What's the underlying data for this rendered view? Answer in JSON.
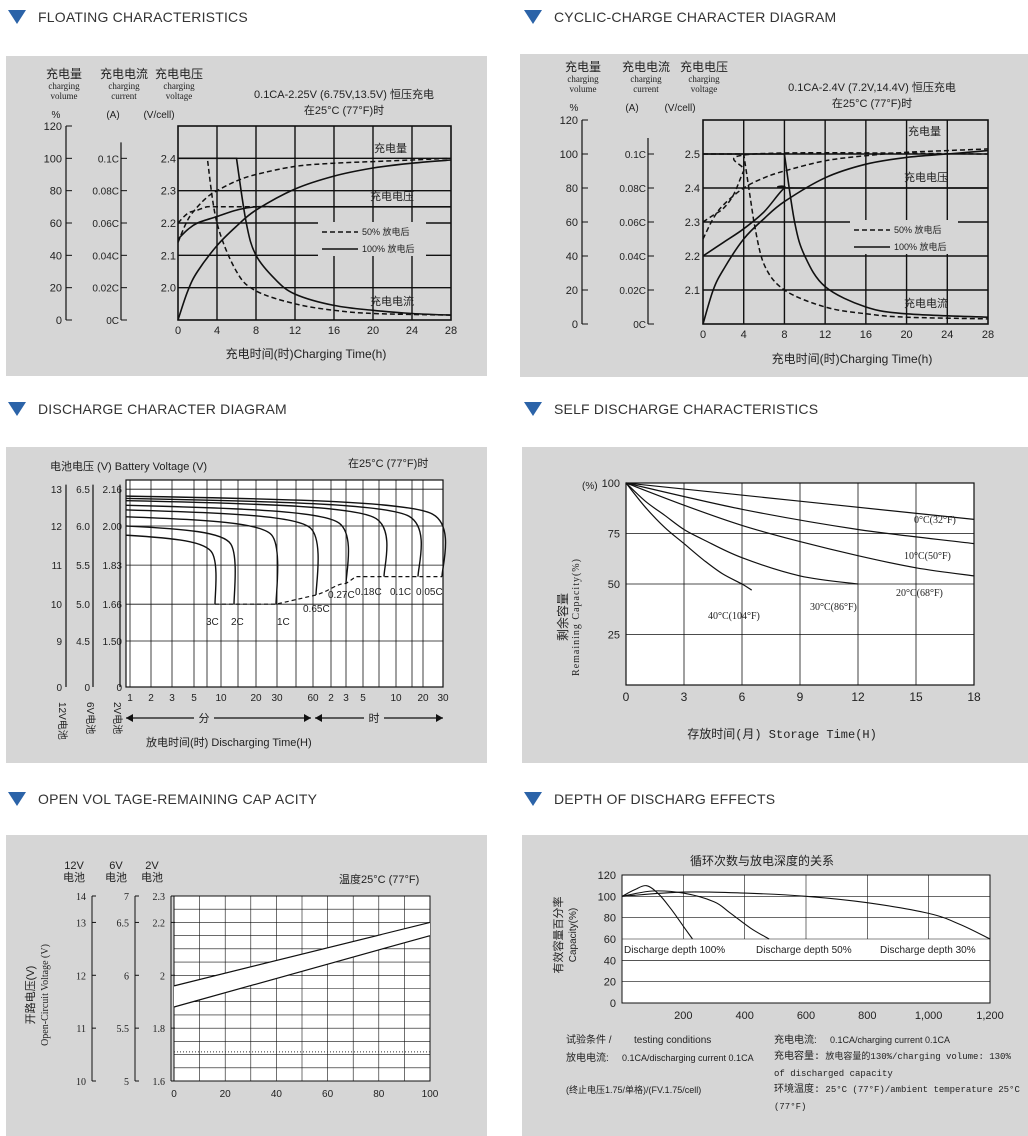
{
  "headers": {
    "float": "FLOATING CHARACTERISTICS",
    "cyclic": "CYCLIC-CHARGE CHARACTER DIAGRAM",
    "discharge": "DISCHARGE CHARACTER DIAGRAM",
    "self": "SELF DISCHARGE CHARACTERISTICS",
    "ocv": "OPEN VOL TAGE-REMAINING CAP ACITY",
    "dod": "DEPTH OF DISCHARG EFFECTS"
  },
  "float": {
    "col1": {
      "zh": "充电量",
      "en1": "charging",
      "en2": "volume",
      "unit": "%"
    },
    "col2": {
      "zh": "充电电流",
      "en1": "charging",
      "en2": "current",
      "unit": "(A)"
    },
    "col3": {
      "zh": "充电电压",
      "en1": "charging",
      "en2": "voltage",
      "unit": "(V/cell)"
    },
    "cond1": "0.1CA-2.25V (6.75V,13.5V) 恒压充电",
    "cond2": "在25°C (77°F)时",
    "lbl_vol": "充电量",
    "lbl_volt": "充电电压",
    "lbl_cur": "充电电流",
    "leg50": "50% 放电后",
    "leg100": "100% 放电后",
    "xlabel": "充电时间(时)Charging Time(h)"
  },
  "cyclic": {
    "col1": {
      "zh": "充电量",
      "en1": "charging",
      "en2": "volume",
      "unit": "%"
    },
    "col2": {
      "zh": "充电电流",
      "en1": "charging",
      "en2": "current",
      "unit": "(A)"
    },
    "col3": {
      "zh": "充电电压",
      "en1": "charging",
      "en2": "voltage",
      "unit": "(V/cell)"
    },
    "cond1": "0.1CA-2.4V (7.2V,14.4V) 恒压充电",
    "cond2": "在25°C (77°F)时",
    "lbl_vol": "充电量",
    "lbl_volt": "充电电压",
    "lbl_cur": "充电电流",
    "leg50": "50% 放电后",
    "leg100": "100% 放电后",
    "xlabel": "充电时间(时)Charging Time(h)"
  },
  "discharge": {
    "title": "电池电压 (V) Battery Voltage (V)",
    "temp": "在25°C (77°F)时",
    "col12": "12V电池",
    "col6": "6V电池",
    "col2": "2V电池",
    "min_lbl": "分",
    "hr_lbl": "时",
    "xlabel": "放电时间(时) Discharging Time(H)"
  },
  "self": {
    "ylabel_zh": "剩余容量",
    "ylabel_en": "Remaining Capacity(%)",
    "unit": "(%)",
    "xlabel": "存放时间(月) Storage Time(H)"
  },
  "ocv": {
    "h12": "12V",
    "h6": "6V",
    "h2": "2V",
    "hcell": "电池",
    "temp": "温度25°C (77°F)",
    "ylabel_zh": "开路电压(V)",
    "ylabel_en": "Open-Circuit Voltage (V)"
  },
  "dod": {
    "title": "循环次数与放电深度的关系",
    "ylabel_zh": "有效容量百分率",
    "ylabel_en": "Capacity(%)",
    "notes": [
      {
        "k": "试验条件 /",
        "v": "testing conditions"
      },
      {
        "k": "放电电流:",
        "v": "0.1CA/discharging current 0.1CA"
      },
      {
        "k": "",
        "v": "(终止电压1.75/单格)/(FV.1.75/cell)"
      },
      {
        "k": "充电电流:",
        "v": "0.1CA/charging current 0.1CA"
      },
      {
        "k": "充电容量:",
        "v": "放电容量的130%/charging volume: 130% of discharged capacity"
      },
      {
        "k": "环境温度:",
        "v": "25°C (77°F)/ambient temperature 25°C (77°F)"
      }
    ]
  },
  "chart_data": [
    {
      "type": "line",
      "id": "floating",
      "title": "FLOATING CHARACTERISTICS",
      "xlabel": "充电时间(时)Charging Time(h)",
      "xlim": [
        0,
        28
      ],
      "xticks": [
        0,
        4,
        8,
        12,
        16,
        20,
        24,
        28
      ],
      "y_axes": [
        {
          "name": "charging volume",
          "unit": "%",
          "ticks": [
            0,
            20,
            40,
            60,
            80,
            100,
            120
          ]
        },
        {
          "name": "charging current",
          "unit": "(A)",
          "ticks": [
            "0C",
            "0.02C",
            "0.04C",
            "0.06C",
            "0.08C",
            "0.1C"
          ]
        },
        {
          "name": "charging voltage",
          "unit": "(V/cell)",
          "ticks": [
            2.0,
            2.1,
            2.2,
            2.3,
            2.4
          ]
        }
      ],
      "series": [
        {
          "name": "充电量 50% 放电后",
          "x": [
            0,
            1,
            2,
            3,
            4,
            6,
            8,
            12,
            16,
            20,
            24,
            28
          ],
          "y": [
            48,
            62,
            70,
            76,
            80,
            86,
            90,
            95,
            97,
            98,
            99,
            100
          ]
        },
        {
          "name": "充电量 100% 放电后",
          "x": [
            0,
            1,
            2,
            4,
            6,
            8,
            12,
            16,
            20,
            24,
            28
          ],
          "y": [
            0,
            18,
            30,
            46,
            58,
            68,
            81,
            89,
            94,
            97,
            99
          ]
        },
        {
          "name": "充电电压 50% 放电后",
          "x": [
            0,
            1,
            2,
            3,
            4,
            8,
            28
          ],
          "y": [
            2.2,
            2.23,
            2.24,
            2.25,
            2.25,
            2.25,
            2.25
          ]
        },
        {
          "name": "充电电压 100% 放电后",
          "x": [
            0,
            1,
            2,
            4,
            6,
            8,
            12,
            28
          ],
          "y": [
            2.15,
            2.18,
            2.2,
            2.22,
            2.24,
            2.25,
            2.25,
            2.25
          ]
        },
        {
          "name": "充电电流 50% 放电后",
          "x": [
            0,
            2,
            3,
            4,
            6,
            8,
            12,
            16,
            20,
            28
          ],
          "y": [
            0.1,
            0.1,
            0.1,
            0.06,
            0.03,
            0.018,
            0.01,
            0.006,
            0.004,
            0.003
          ]
        },
        {
          "name": "充电电流 100% 放电后",
          "x": [
            0,
            6,
            7,
            8,
            10,
            12,
            16,
            20,
            24,
            28
          ],
          "y": [
            0.1,
            0.1,
            0.06,
            0.04,
            0.025,
            0.016,
            0.009,
            0.006,
            0.004,
            0.003
          ]
        }
      ]
    },
    {
      "type": "line",
      "id": "cyclic",
      "title": "CYCLIC-CHARGE CHARACTER DIAGRAM",
      "xlabel": "充电时间(时)Charging Time(h)",
      "xlim": [
        0,
        28
      ],
      "xticks": [
        0,
        4,
        8,
        12,
        16,
        20,
        24,
        28
      ],
      "y_axes": [
        {
          "name": "charging volume",
          "unit": "%",
          "ticks": [
            0,
            20,
            40,
            60,
            80,
            100,
            120
          ]
        },
        {
          "name": "charging current",
          "unit": "(A)",
          "ticks": [
            "0C",
            "0.02C",
            "0.04C",
            "0.06C",
            "0.08C",
            "0.1C"
          ]
        },
        {
          "name": "charging voltage",
          "unit": "(V/cell)",
          "ticks": [
            2.1,
            2.2,
            2.3,
            2.4,
            2.5
          ]
        }
      ],
      "series": [
        {
          "name": "充电量 50% 放电后",
          "x": [
            0,
            1,
            2,
            4,
            6,
            8,
            12,
            16,
            20,
            24,
            28
          ],
          "y": [
            50,
            62,
            70,
            80,
            86,
            90,
            96,
            99,
            101,
            102,
            103
          ]
        },
        {
          "name": "充电量 100% 放电后",
          "x": [
            0,
            1,
            2,
            4,
            6,
            8,
            12,
            16,
            20,
            24,
            28
          ],
          "y": [
            0,
            20,
            32,
            50,
            62,
            72,
            86,
            94,
            98,
            100,
            102
          ]
        },
        {
          "name": "充电电压 50% 放电后",
          "x": [
            0,
            1,
            2,
            3,
            4,
            5,
            28
          ],
          "y": [
            2.3,
            2.32,
            2.34,
            2.38,
            2.45,
            2.5,
            2.5
          ]
        },
        {
          "name": "充电电压 100% 放电后",
          "x": [
            0,
            2,
            4,
            6,
            8,
            9,
            28
          ],
          "y": [
            2.2,
            2.24,
            2.28,
            2.33,
            2.4,
            2.4,
            2.4
          ]
        },
        {
          "name": "充电电流 50% 放电后",
          "x": [
            0,
            4,
            5,
            6,
            8,
            12,
            16,
            20,
            28
          ],
          "y": [
            0.1,
            0.1,
            0.06,
            0.035,
            0.02,
            0.01,
            0.006,
            0.004,
            0.003
          ]
        },
        {
          "name": "充电电流 100% 放电后",
          "x": [
            0,
            8,
            9,
            10,
            12,
            16,
            20,
            28
          ],
          "y": [
            0.1,
            0.1,
            0.06,
            0.04,
            0.022,
            0.01,
            0.006,
            0.004
          ]
        }
      ]
    },
    {
      "type": "line",
      "id": "discharge",
      "title": "DISCHARGE CHARACTER DIAGRAM",
      "y_axes": [
        {
          "name": "12V",
          "ticks": [
            0,
            9,
            10,
            11,
            12,
            13
          ]
        },
        {
          "name": "6V",
          "ticks": [
            0,
            4.5,
            5.0,
            5.5,
            6.0,
            6.5
          ]
        },
        {
          "name": "2V",
          "ticks": [
            0,
            1.5,
            1.66,
            1.83,
            2.0,
            2.16
          ]
        }
      ],
      "x_minutes": [
        1,
        2,
        3,
        5,
        10,
        20,
        30,
        60
      ],
      "x_hours": [
        2,
        3,
        5,
        10,
        20,
        30
      ],
      "series": [
        {
          "name": "3C",
          "end_min": 8,
          "start_v": 1.96,
          "end_v": 1.66
        },
        {
          "name": "2C",
          "end_min": 12,
          "start_v": 2.0,
          "end_v": 1.66
        },
        {
          "name": "1C",
          "end_min": 38,
          "start_v": 2.04,
          "end_v": 1.66
        },
        {
          "name": "0.65C",
          "end_min": 80,
          "start_v": 2.07,
          "end_v": 1.7
        },
        {
          "name": "0.27C",
          "end_hr": 3.2,
          "start_v": 2.09,
          "end_v": 1.75
        },
        {
          "name": "0.18C",
          "end_hr": 5.2,
          "start_v": 2.11,
          "end_v": 1.78
        },
        {
          "name": "0.1C",
          "end_hr": 10,
          "start_v": 2.12,
          "end_v": 1.78
        },
        {
          "name": "0.05C",
          "end_hr": 20,
          "start_v": 2.13,
          "end_v": 1.78
        }
      ]
    },
    {
      "type": "line",
      "id": "self-discharge",
      "title": "SELF DISCHARGE CHARACTERISTICS",
      "xlabel": "存放时间(月) Storage Time(H)",
      "ylabel": "Remaining Capacity(%)",
      "xlim": [
        0,
        18
      ],
      "ylim": [
        0,
        100
      ],
      "xticks": [
        0,
        3,
        6,
        9,
        12,
        15,
        18
      ],
      "yticks": [
        25,
        50,
        75,
        100
      ],
      "series": [
        {
          "name": "0°C(32°F)",
          "x": [
            0,
            18
          ],
          "y": [
            100,
            82
          ]
        },
        {
          "name": "10°C(50°F)",
          "x": [
            0,
            6,
            12,
            18
          ],
          "y": [
            100,
            87,
            77,
            70
          ]
        },
        {
          "name": "20°C(68°F)",
          "x": [
            0,
            3,
            6,
            9,
            12,
            15,
            18
          ],
          "y": [
            100,
            89,
            79,
            71,
            64,
            58,
            54
          ]
        },
        {
          "name": "30°C(86°F)",
          "x": [
            0,
            1,
            2,
            3,
            4,
            6,
            9,
            12
          ],
          "y": [
            100,
            91,
            84,
            77,
            72,
            63,
            54,
            50
          ]
        },
        {
          "name": "40°C(104°F)",
          "x": [
            0,
            1,
            2,
            3,
            4,
            5,
            6,
            6.5
          ],
          "y": [
            100,
            88,
            78,
            70,
            62,
            55,
            50,
            47
          ]
        }
      ]
    },
    {
      "type": "line",
      "id": "open-voltage",
      "title": "OPEN VOL TAGE-REMAINING CAP ACITY",
      "xlim": [
        0,
        100
      ],
      "xticks": [
        0,
        20,
        40,
        60,
        80,
        100
      ],
      "y_axes": [
        {
          "name": "12V",
          "ticks": [
            10,
            11,
            12,
            13,
            14
          ]
        },
        {
          "name": "6V",
          "ticks": [
            5,
            5.5,
            6,
            6.5,
            7.0
          ]
        },
        {
          "name": "2V",
          "ticks": [
            1.6,
            1.8,
            2.0,
            2.2,
            2.3
          ]
        }
      ],
      "series": [
        {
          "name": "upper bound",
          "x": [
            0,
            100
          ],
          "y": [
            1.96,
            2.2
          ]
        },
        {
          "name": "lower bound",
          "x": [
            0,
            100
          ],
          "y": [
            1.88,
            2.15
          ]
        },
        {
          "name": "reference (dotted)",
          "x": [
            0,
            100
          ],
          "y": [
            1.71,
            1.71
          ]
        }
      ]
    },
    {
      "type": "line",
      "id": "depth-of-discharge",
      "title": "循环次数与放电深度的关系",
      "xlim": [
        0,
        1200
      ],
      "ylim": [
        0,
        120
      ],
      "xticks": [
        200,
        400,
        600,
        800,
        1000,
        1200
      ],
      "yticks": [
        0,
        20,
        40,
        60,
        80,
        100,
        120
      ],
      "series": [
        {
          "name": "Discharge depth 100%",
          "x": [
            0,
            40,
            80,
            120,
            160,
            200,
            230
          ],
          "y": [
            100,
            106,
            110,
            102,
            88,
            72,
            60
          ]
        },
        {
          "name": "Discharge depth 50%",
          "x": [
            0,
            100,
            200,
            300,
            350,
            420,
            480
          ],
          "y": [
            100,
            105,
            103,
            95,
            85,
            70,
            60
          ]
        },
        {
          "name": "Discharge depth 30%",
          "x": [
            0,
            200,
            400,
            600,
            800,
            1000,
            1100,
            1200
          ],
          "y": [
            100,
            104,
            103,
            100,
            94,
            84,
            74,
            60
          ]
        }
      ],
      "legend": [
        "Discharge depth 100%",
        "Discharge depth 50%",
        "Discharge depth 30%"
      ]
    }
  ]
}
